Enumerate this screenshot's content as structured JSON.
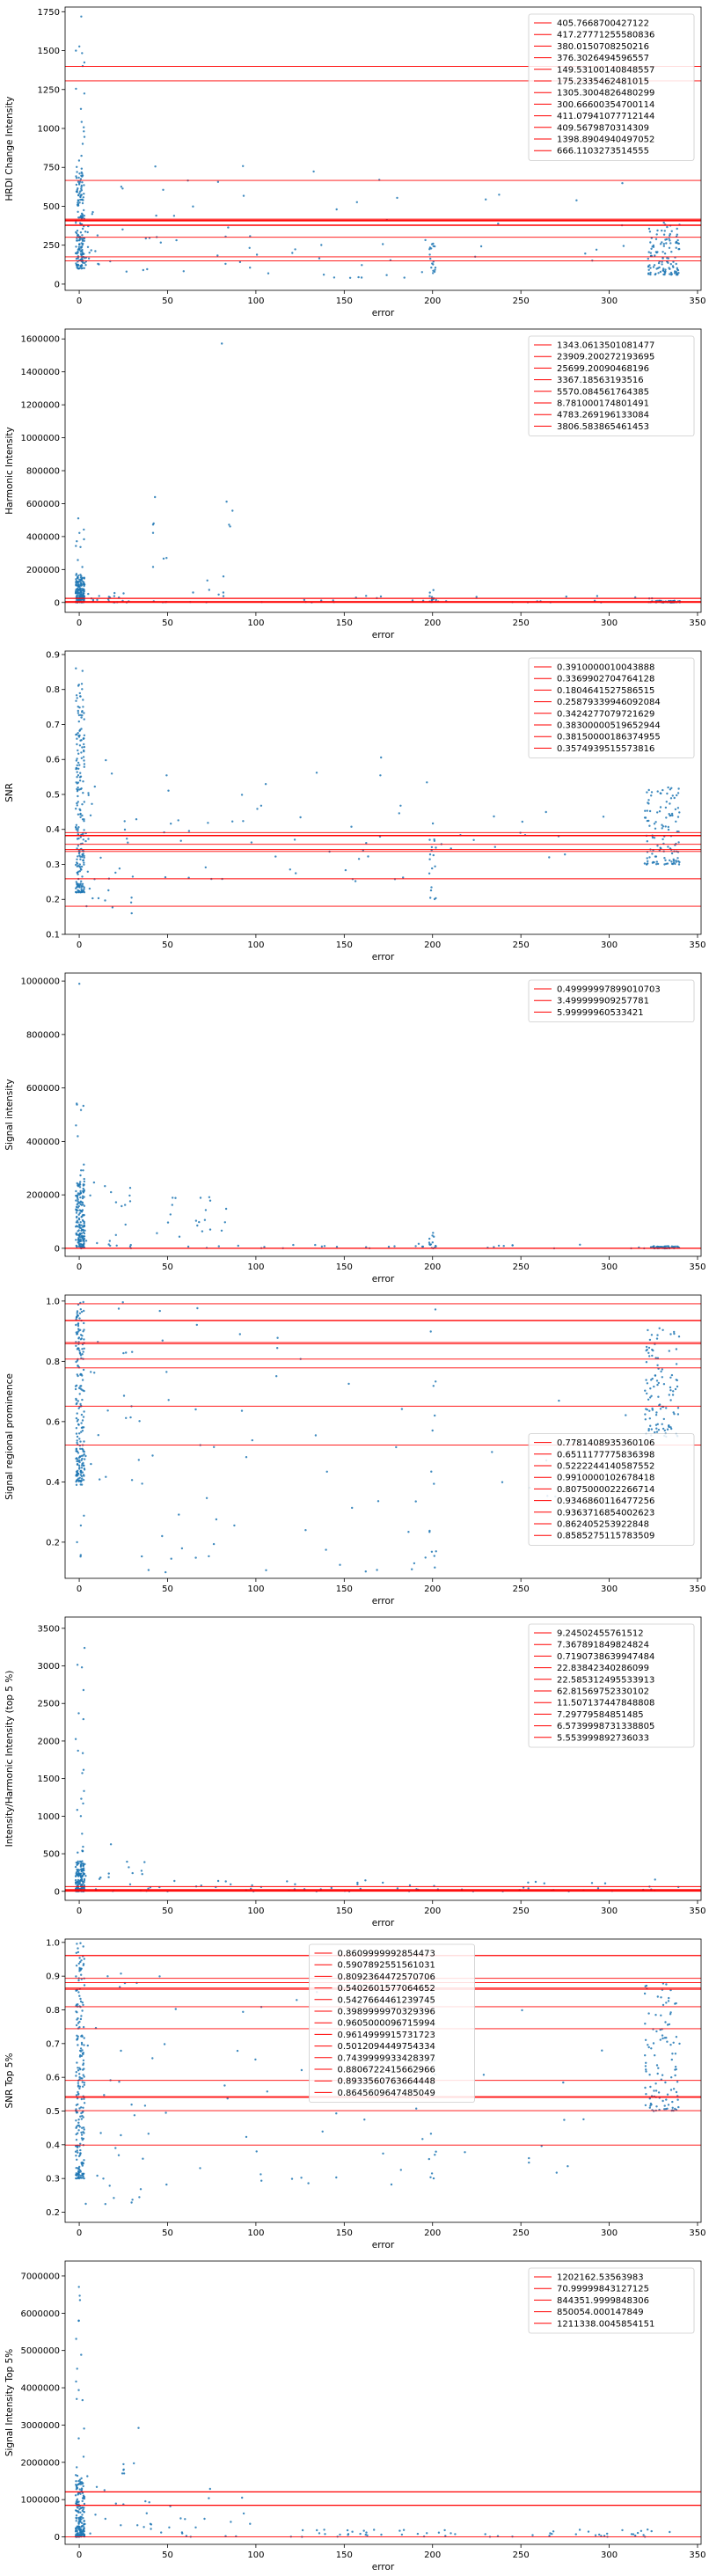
{
  "colors": {
    "points": "#1f77b4",
    "hlines": "#ff0000"
  },
  "chart_data": [
    {
      "type": "scatter",
      "xlabel": "error",
      "ylabel": "HRDI Change Intensity",
      "xlim": [
        -8,
        352
      ],
      "ylim": [
        -40,
        1780
      ],
      "xticks": [
        0,
        50,
        100,
        150,
        200,
        250,
        300,
        350
      ],
      "yticks": [
        0,
        250,
        500,
        750,
        1000,
        1250,
        1500,
        1750
      ],
      "ytick_labels": [
        "0",
        "250",
        "500",
        "750",
        "1000",
        "1250",
        "1500",
        "1750"
      ],
      "legend_position": "top-right",
      "hlines": [
        "405.7668700427122",
        "417.27771255580836",
        "380.0150708250216",
        "376.3026494596557",
        "149.53100140848557",
        "175.2335462481015",
        "1305.3004826480299",
        "300.66600354700114",
        "411.07941077712144",
        "409.5679870314309",
        "1398.8904940497052",
        "666.1103273514555"
      ],
      "clusters": [
        {
          "x": [
            -2,
            3
          ],
          "y": [
            100,
            700
          ],
          "n": 160
        },
        {
          "x": [
            -2,
            3
          ],
          "y": [
            700,
            1750
          ],
          "n": 22
        },
        {
          "x": [
            3,
            12
          ],
          "y": [
            120,
            500
          ],
          "n": 18
        },
        {
          "x": [
            12,
            100
          ],
          "y": [
            80,
            800
          ],
          "n": 30
        },
        {
          "x": [
            100,
            200
          ],
          "y": [
            40,
            750
          ],
          "n": 24
        },
        {
          "x": [
            198,
            202
          ],
          "y": [
            70,
            300
          ],
          "n": 18
        },
        {
          "x": [
            205,
            320
          ],
          "y": [
            150,
            650
          ],
          "n": 12
        },
        {
          "x": [
            322,
            340
          ],
          "y": [
            60,
            400
          ],
          "n": 120
        }
      ]
    },
    {
      "type": "scatter",
      "xlabel": "error",
      "ylabel": "Harmonic Intensity",
      "xlim": [
        -8,
        352
      ],
      "ylim": [
        -60000,
        1660000
      ],
      "xticks": [
        0,
        50,
        100,
        150,
        200,
        250,
        300,
        350
      ],
      "yticks": [
        0,
        200000,
        400000,
        600000,
        800000,
        1000000,
        1200000,
        1400000,
        1600000
      ],
      "ytick_labels": [
        "0",
        "200000",
        "400000",
        "600000",
        "800000",
        "1000000",
        "1200000",
        "1400000",
        "1600000"
      ],
      "legend_position": "top-right",
      "hlines": [
        "1343.0613501081477",
        "23909.200272193695",
        "25699.20090468196",
        "3367.18563193516",
        "5570.084561764385",
        "8.781000174801491",
        "4783.269196133084",
        "3806.583865461453"
      ],
      "clusters": [
        {
          "x": [
            -2,
            3
          ],
          "y": [
            0,
            160000
          ],
          "n": 170
        },
        {
          "x": [
            -2,
            3
          ],
          "y": [
            160000,
            560000
          ],
          "n": 14
        },
        {
          "x": [
            3,
            30
          ],
          "y": [
            0,
            60000
          ],
          "n": 20
        },
        {
          "x": [
            40,
            90
          ],
          "y": [
            0,
            700000
          ],
          "n": 24
        },
        {
          "x": [
            78,
            82
          ],
          "y": [
            1550000,
            1610000
          ],
          "n": 1
        },
        {
          "x": [
            100,
            330
          ],
          "y": [
            0,
            40000
          ],
          "n": 30
        },
        {
          "x": [
            198,
            202
          ],
          "y": [
            0,
            80000
          ],
          "n": 12
        },
        {
          "x": [
            322,
            340
          ],
          "y": [
            0,
            12000
          ],
          "n": 60
        }
      ]
    },
    {
      "type": "scatter",
      "xlabel": "error",
      "ylabel": "SNR",
      "xlim": [
        -8,
        352
      ],
      "ylim": [
        0.1,
        0.91
      ],
      "xticks": [
        0,
        50,
        100,
        150,
        200,
        250,
        300,
        350
      ],
      "yticks": [
        0.1,
        0.2,
        0.3,
        0.4,
        0.5,
        0.6,
        0.7,
        0.8,
        0.9
      ],
      "ytick_labels": [
        "0.1",
        "0.2",
        "0.3",
        "0.4",
        "0.5",
        "0.6",
        "0.7",
        "0.8",
        "0.9"
      ],
      "legend_position": "top-right",
      "hlines": [
        "0.3910000010043888",
        "0.3369902704764128",
        "0.1804641527586515",
        "0.25879339946092084",
        "0.3424277079721629",
        "0.38300000519652944",
        "0.38150000186374955",
        "0.3574939515573816"
      ],
      "clusters": [
        {
          "x": [
            -2,
            3
          ],
          "y": [
            0.22,
            0.78
          ],
          "n": 200
        },
        {
          "x": [
            -2,
            3
          ],
          "y": [
            0.78,
            0.88
          ],
          "n": 10
        },
        {
          "x": [
            3,
            30
          ],
          "y": [
            0.15,
            0.6
          ],
          "n": 30
        },
        {
          "x": [
            30,
            200
          ],
          "y": [
            0.25,
            0.63
          ],
          "n": 45
        },
        {
          "x": [
            198,
            202
          ],
          "y": [
            0.2,
            0.42
          ],
          "n": 18
        },
        {
          "x": [
            205,
            320
          ],
          "y": [
            0.32,
            0.45
          ],
          "n": 14
        },
        {
          "x": [
            320,
            340
          ],
          "y": [
            0.3,
            0.52
          ],
          "n": 120
        }
      ]
    },
    {
      "type": "scatter",
      "xlabel": "error",
      "ylabel": "Signal intensity",
      "xlim": [
        -8,
        352
      ],
      "ylim": [
        -30000,
        1030000
      ],
      "xticks": [
        0,
        50,
        100,
        150,
        200,
        250,
        300,
        350
      ],
      "yticks": [
        0,
        200000,
        400000,
        600000,
        800000,
        1000000
      ],
      "ytick_labels": [
        "0",
        "200000",
        "400000",
        "600000",
        "800000",
        "1000000"
      ],
      "legend_position": "top-right",
      "hlines": [
        "0.49999997899010703",
        "3.499999909257781",
        "5.99999960533421"
      ],
      "clusters": [
        {
          "x": [
            -2,
            3
          ],
          "y": [
            0,
            250000
          ],
          "n": 170
        },
        {
          "x": [
            -2,
            3
          ],
          "y": [
            250000,
            580000
          ],
          "n": 12
        },
        {
          "x": [
            0,
            2
          ],
          "y": [
            985000,
            995000
          ],
          "n": 1
        },
        {
          "x": [
            3,
            30
          ],
          "y": [
            0,
            250000
          ],
          "n": 22
        },
        {
          "x": [
            40,
            90
          ],
          "y": [
            0,
            200000
          ],
          "n": 24
        },
        {
          "x": [
            100,
            330
          ],
          "y": [
            0,
            20000
          ],
          "n": 30
        },
        {
          "x": [
            198,
            202
          ],
          "y": [
            0,
            60000
          ],
          "n": 12
        },
        {
          "x": [
            322,
            340
          ],
          "y": [
            0,
            8000
          ],
          "n": 60
        }
      ]
    },
    {
      "type": "scatter",
      "xlabel": "error",
      "ylabel": "Signal regional prominence",
      "xlim": [
        -8,
        352
      ],
      "ylim": [
        0.08,
        1.02
      ],
      "xticks": [
        0,
        50,
        100,
        150,
        200,
        250,
        300,
        350
      ],
      "yticks": [
        0.2,
        0.4,
        0.6,
        0.8,
        1.0
      ],
      "ytick_labels": [
        "0.2",
        "0.4",
        "0.6",
        "0.8",
        "1.0"
      ],
      "legend_position": "center-right",
      "hlines": [
        "0.7781408935360106",
        "0.6511177775836398",
        "0.5222244140587552",
        "0.9910000102678418",
        "0.8075000022266714",
        "0.9346860116477256",
        "0.9363716854002623",
        "0.862405253922848",
        "0.8585275115783509"
      ],
      "clusters": [
        {
          "x": [
            -2,
            3
          ],
          "y": [
            0.4,
            1.0
          ],
          "n": 200
        },
        {
          "x": [
            -2,
            3
          ],
          "y": [
            0.15,
            0.4
          ],
          "n": 8
        },
        {
          "x": [
            3,
            30
          ],
          "y": [
            0.4,
            1.0
          ],
          "n": 20
        },
        {
          "x": [
            30,
            100
          ],
          "y": [
            0.1,
            0.98
          ],
          "n": 30
        },
        {
          "x": [
            100,
            200
          ],
          "y": [
            0.1,
            0.98
          ],
          "n": 22
        },
        {
          "x": [
            198,
            202
          ],
          "y": [
            0.1,
            0.98
          ],
          "n": 14
        },
        {
          "x": [
            205,
            320
          ],
          "y": [
            0.35,
            0.75
          ],
          "n": 12
        },
        {
          "x": [
            320,
            340
          ],
          "y": [
            0.55,
            0.92
          ],
          "n": 110
        }
      ]
    },
    {
      "type": "scatter",
      "xlabel": "error",
      "ylabel": "Intensity/Harmonic Intensity (top 5 %)",
      "xlim": [
        -8,
        352
      ],
      "ylim": [
        -120,
        3650
      ],
      "xticks": [
        0,
        50,
        100,
        150,
        200,
        250,
        300,
        350
      ],
      "yticks": [
        0,
        500,
        1000,
        1500,
        2000,
        2500,
        3000,
        3500
      ],
      "ytick_labels": [
        "0",
        "500",
        "1000",
        "1500",
        "2000",
        "2500",
        "3000",
        "3500"
      ],
      "legend_position": "top-right",
      "hlines": [
        "9.24502455761512",
        "7.367891849824824",
        "0.7190738639947484",
        "22.83842340286099",
        "22.585312495533913",
        "62.81569752330102",
        "11.507137447848808",
        "7.29779584851485",
        "6.5739998731338805",
        "5.553999892736033"
      ],
      "clusters": [
        {
          "x": [
            -2,
            3
          ],
          "y": [
            0,
            400
          ],
          "n": 160
        },
        {
          "x": [
            -2,
            3
          ],
          "y": [
            400,
            3550
          ],
          "n": 22
        },
        {
          "x": [
            3,
            40
          ],
          "y": [
            0,
            650
          ],
          "n": 22
        },
        {
          "x": [
            40,
            340
          ],
          "y": [
            0,
            160
          ],
          "n": 60
        }
      ]
    },
    {
      "type": "scatter",
      "xlabel": "error",
      "ylabel": "SNR Top 5%",
      "xlim": [
        -8,
        352
      ],
      "ylim": [
        0.17,
        1.01
      ],
      "xticks": [
        0,
        50,
        100,
        150,
        200,
        250,
        300,
        350
      ],
      "yticks": [
        0.2,
        0.3,
        0.4,
        0.5,
        0.6,
        0.7,
        0.8,
        0.9,
        1.0
      ],
      "ytick_labels": [
        "0.2",
        "0.3",
        "0.4",
        "0.5",
        "0.6",
        "0.7",
        "0.8",
        "0.9",
        "1.0"
      ],
      "legend_position": "top-center",
      "hlines": [
        "0.8609999992854473",
        "0.5907892551561031",
        "0.8092364472570706",
        "0.5402601577064652",
        "0.5427664461239745",
        "0.3989999970329396",
        "0.9605000096715994",
        "0.9614999915731723",
        "0.5012094449754334",
        "0.7439999933428397",
        "0.8806722415662966",
        "0.8933560763664448",
        "0.8645609647485049"
      ],
      "clusters": [
        {
          "x": [
            -2,
            3
          ],
          "y": [
            0.3,
            1.0
          ],
          "n": 220
        },
        {
          "x": [
            3,
            40
          ],
          "y": [
            0.22,
            0.95
          ],
          "n": 30
        },
        {
          "x": [
            40,
            200
          ],
          "y": [
            0.28,
            0.9
          ],
          "n": 40
        },
        {
          "x": [
            198,
            202
          ],
          "y": [
            0.3,
            0.9
          ],
          "n": 14
        },
        {
          "x": [
            205,
            320
          ],
          "y": [
            0.3,
            0.8
          ],
          "n": 12
        },
        {
          "x": [
            320,
            340
          ],
          "y": [
            0.5,
            0.88
          ],
          "n": 110
        }
      ]
    },
    {
      "type": "scatter",
      "xlabel": "error",
      "ylabel": "Signal Intensity Top 5%",
      "xlim": [
        -8,
        352
      ],
      "ylim": [
        -200000,
        7400000
      ],
      "xticks": [
        0,
        50,
        100,
        150,
        200,
        250,
        300,
        350
      ],
      "yticks": [
        0,
        1000000,
        2000000,
        3000000,
        4000000,
        5000000,
        6000000,
        7000000
      ],
      "ytick_labels": [
        "0",
        "1000000",
        "2000000",
        "3000000",
        "4000000",
        "5000000",
        "6000000",
        "7000000"
      ],
      "legend_position": "top-right",
      "hlines": [
        "1202162.53563983",
        "70.99999843127125",
        "844351.9999848306",
        "850054.000147849",
        "1211338.0045854151"
      ],
      "clusters": [
        {
          "x": [
            -2,
            3
          ],
          "y": [
            0,
            1500000
          ],
          "n": 170
        },
        {
          "x": [
            -2,
            3
          ],
          "y": [
            1500000,
            7100000
          ],
          "n": 20
        },
        {
          "x": [
            3,
            40
          ],
          "y": [
            0,
            3000000
          ],
          "n": 22
        },
        {
          "x": [
            40,
            100
          ],
          "y": [
            0,
            1300000
          ],
          "n": 22
        },
        {
          "x": [
            100,
            340
          ],
          "y": [
            0,
            200000
          ],
          "n": 60
        }
      ]
    }
  ]
}
